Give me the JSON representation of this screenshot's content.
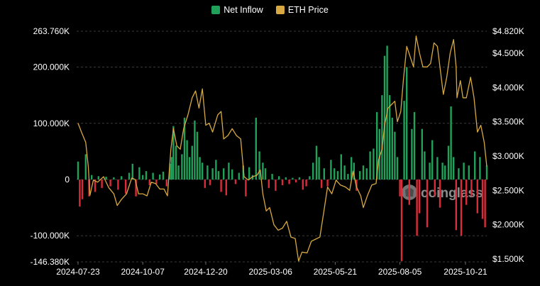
{
  "legend": {
    "inflow_label": "Net Inflow",
    "price_label": "ETH Price"
  },
  "watermark": {
    "text": "coinglass"
  },
  "colors": {
    "inflow_positive": "#21a05a",
    "inflow_negative": "#d92b3a",
    "price": "#d8a843",
    "grid": "#3a3a3a"
  },
  "chart_data": {
    "type": "bar+line",
    "categories_label": "date",
    "x_range": [
      "2024-07-23",
      "2025-11-15"
    ],
    "x_ticks": [
      "2024-07-23",
      "2024-10-07",
      "2024-12-20",
      "2025-03-06",
      "2025-05-21",
      "2025-08-05",
      "2025-10-21"
    ],
    "y_left": {
      "ticks": [
        "263.760K",
        "200.000K",
        "100.000K",
        "0",
        "-100.000K",
        "-146.380K"
      ],
      "tick_values": [
        263760,
        200000,
        100000,
        0,
        -100000,
        -146380
      ],
      "range": [
        -146380,
        263760
      ]
    },
    "y_right": {
      "ticks": [
        "$4.820K",
        "$4.500K",
        "$4.000K",
        "$3.500K",
        "$3.000K",
        "$2.500K",
        "$2.000K",
        "$1.500K"
      ],
      "tick_values": [
        4820,
        4500,
        4000,
        3500,
        3000,
        2500,
        2000,
        1500
      ],
      "range": [
        1420,
        4820
      ]
    },
    "grid": true,
    "legend_position": "top-center",
    "series": [
      {
        "name": "Net Inflow",
        "kind": "bar",
        "points": [
          [
            "2024-07-23",
            32000
          ],
          [
            "2024-07-25",
            -48000
          ],
          [
            "2024-07-28",
            -35000
          ],
          [
            "2024-08-01",
            45000
          ],
          [
            "2024-08-05",
            -30000
          ],
          [
            "2024-08-08",
            8000
          ],
          [
            "2024-08-12",
            -22000
          ],
          [
            "2024-08-16",
            6000
          ],
          [
            "2024-08-20",
            -15000
          ],
          [
            "2024-08-25",
            5000
          ],
          [
            "2024-08-30",
            -12000
          ],
          [
            "2024-09-03",
            4000
          ],
          [
            "2024-09-08",
            -18000
          ],
          [
            "2024-09-12",
            6000
          ],
          [
            "2024-09-17",
            -25000
          ],
          [
            "2024-09-21",
            12000
          ],
          [
            "2024-09-25",
            28000
          ],
          [
            "2024-09-29",
            -30000
          ],
          [
            "2024-10-03",
            22000
          ],
          [
            "2024-10-07",
            8000
          ],
          [
            "2024-10-11",
            15000
          ],
          [
            "2024-10-15",
            -10000
          ],
          [
            "2024-10-19",
            12000
          ],
          [
            "2024-10-23",
            -8000
          ],
          [
            "2024-10-27",
            9000
          ],
          [
            "2024-10-31",
            14000
          ],
          [
            "2024-11-04",
            -12000
          ],
          [
            "2024-11-08",
            28000
          ],
          [
            "2024-11-10",
            40000
          ],
          [
            "2024-11-12",
            95000
          ],
          [
            "2024-11-15",
            60000
          ],
          [
            "2024-11-18",
            25000
          ],
          [
            "2024-11-22",
            45000
          ],
          [
            "2024-11-25",
            110000
          ],
          [
            "2024-11-28",
            70000
          ],
          [
            "2024-12-01",
            40000
          ],
          [
            "2024-12-04",
            60000
          ],
          [
            "2024-12-07",
            105000
          ],
          [
            "2024-12-10",
            85000
          ],
          [
            "2024-12-13",
            40000
          ],
          [
            "2024-12-16",
            30000
          ],
          [
            "2024-12-19",
            -15000
          ],
          [
            "2024-12-22",
            25000
          ],
          [
            "2024-12-25",
            -10000
          ],
          [
            "2024-12-28",
            20000
          ],
          [
            "2025-01-01",
            35000
          ],
          [
            "2025-01-04",
            15000
          ],
          [
            "2025-01-07",
            -22000
          ],
          [
            "2025-01-10",
            20000
          ],
          [
            "2025-01-13",
            -28000
          ],
          [
            "2025-01-16",
            30000
          ],
          [
            "2025-01-20",
            18000
          ],
          [
            "2025-01-24",
            -8000
          ],
          [
            "2025-01-28",
            12000
          ],
          [
            "2025-02-02",
            25000
          ],
          [
            "2025-02-05",
            -30000
          ],
          [
            "2025-02-09",
            22000
          ],
          [
            "2025-02-13",
            8000
          ],
          [
            "2025-02-17",
            110000
          ],
          [
            "2025-02-21",
            50000
          ],
          [
            "2025-02-25",
            30000
          ],
          [
            "2025-02-28",
            20000
          ],
          [
            "2025-03-04",
            -15000
          ],
          [
            "2025-03-08",
            10000
          ],
          [
            "2025-03-12",
            -20000
          ],
          [
            "2025-03-16",
            6000
          ],
          [
            "2025-03-20",
            -10000
          ],
          [
            "2025-03-24",
            4000
          ],
          [
            "2025-03-28",
            -8000
          ],
          [
            "2025-04-01",
            3000
          ],
          [
            "2025-04-05",
            -5000
          ],
          [
            "2025-04-09",
            4000
          ],
          [
            "2025-04-13",
            -18000
          ],
          [
            "2025-04-17",
            -12000
          ],
          [
            "2025-04-21",
            6000
          ],
          [
            "2025-04-25",
            30000
          ],
          [
            "2025-04-29",
            60000
          ],
          [
            "2025-05-02",
            40000
          ],
          [
            "2025-05-05",
            -15000
          ],
          [
            "2025-05-08",
            20000
          ],
          [
            "2025-05-12",
            -12000
          ],
          [
            "2025-05-16",
            35000
          ],
          [
            "2025-05-20",
            20000
          ],
          [
            "2025-05-24",
            15000
          ],
          [
            "2025-05-28",
            45000
          ],
          [
            "2025-06-01",
            25000
          ],
          [
            "2025-06-05",
            10000
          ],
          [
            "2025-06-09",
            40000
          ],
          [
            "2025-06-12",
            30000
          ],
          [
            "2025-06-15",
            -20000
          ],
          [
            "2025-06-19",
            15000
          ],
          [
            "2025-06-23",
            25000
          ],
          [
            "2025-06-27",
            20000
          ],
          [
            "2025-07-01",
            50000
          ],
          [
            "2025-07-05",
            55000
          ],
          [
            "2025-07-09",
            120000
          ],
          [
            "2025-07-12",
            90000
          ],
          [
            "2025-07-15",
            150000
          ],
          [
            "2025-07-18",
            220000
          ],
          [
            "2025-07-21",
            238000
          ],
          [
            "2025-07-24",
            150000
          ],
          [
            "2025-07-27",
            110000
          ],
          [
            "2025-07-30",
            85000
          ],
          [
            "2025-08-02",
            40000
          ],
          [
            "2025-08-05",
            -30000
          ],
          [
            "2025-08-07",
            -145000
          ],
          [
            "2025-08-10",
            140000
          ],
          [
            "2025-08-13",
            200000
          ],
          [
            "2025-08-16",
            -45000
          ],
          [
            "2025-08-19",
            90000
          ],
          [
            "2025-08-22",
            120000
          ],
          [
            "2025-08-25",
            -100000
          ],
          [
            "2025-08-28",
            -60000
          ],
          [
            "2025-08-31",
            90000
          ],
          [
            "2025-09-03",
            50000
          ],
          [
            "2025-09-06",
            -85000
          ],
          [
            "2025-09-09",
            30000
          ],
          [
            "2025-09-12",
            70000
          ],
          [
            "2025-09-15",
            -30000
          ],
          [
            "2025-09-18",
            40000
          ],
          [
            "2025-09-21",
            -50000
          ],
          [
            "2025-09-24",
            30000
          ],
          [
            "2025-09-27",
            25000
          ],
          [
            "2025-10-01",
            60000
          ],
          [
            "2025-10-04",
            130000
          ],
          [
            "2025-10-07",
            40000
          ],
          [
            "2025-10-10",
            -90000
          ],
          [
            "2025-10-13",
            20000
          ],
          [
            "2025-10-16",
            -100000
          ],
          [
            "2025-10-19",
            30000
          ],
          [
            "2025-10-22",
            -45000
          ],
          [
            "2025-10-25",
            25000
          ],
          [
            "2025-10-28",
            -30000
          ],
          [
            "2025-11-01",
            50000
          ],
          [
            "2025-11-04",
            -60000
          ],
          [
            "2025-11-07",
            40000
          ],
          [
            "2025-11-10",
            -70000
          ],
          [
            "2025-11-13",
            -85000
          ],
          [
            "2025-11-15",
            25000
          ]
        ]
      },
      {
        "name": "ETH Price",
        "kind": "line",
        "points": [
          [
            "2024-07-23",
            3480
          ],
          [
            "2024-07-27",
            3350
          ],
          [
            "2024-08-01",
            3200
          ],
          [
            "2024-08-04",
            2850
          ],
          [
            "2024-08-06",
            2430
          ],
          [
            "2024-08-10",
            2650
          ],
          [
            "2024-08-15",
            2620
          ],
          [
            "2024-08-22",
            2700
          ],
          [
            "2024-08-28",
            2540
          ],
          [
            "2024-09-03",
            2450
          ],
          [
            "2024-09-07",
            2280
          ],
          [
            "2024-09-12",
            2370
          ],
          [
            "2024-09-18",
            2450
          ],
          [
            "2024-09-24",
            2680
          ],
          [
            "2024-09-28",
            2660
          ],
          [
            "2024-10-02",
            2450
          ],
          [
            "2024-10-07",
            2450
          ],
          [
            "2024-10-12",
            2420
          ],
          [
            "2024-10-17",
            2620
          ],
          [
            "2024-10-22",
            2600
          ],
          [
            "2024-10-27",
            2520
          ],
          [
            "2024-11-01",
            2520
          ],
          [
            "2024-11-05",
            2420
          ],
          [
            "2024-11-09",
            3100
          ],
          [
            "2024-11-12",
            3400
          ],
          [
            "2024-11-16",
            3150
          ],
          [
            "2024-11-20",
            3100
          ],
          [
            "2024-11-24",
            3400
          ],
          [
            "2024-11-29",
            3600
          ],
          [
            "2024-12-04",
            3850
          ],
          [
            "2024-12-08",
            3950
          ],
          [
            "2024-12-12",
            3700
          ],
          [
            "2024-12-16",
            3980
          ],
          [
            "2024-12-20",
            3450
          ],
          [
            "2024-12-24",
            3480
          ],
          [
            "2024-12-28",
            3350
          ],
          [
            "2025-01-03",
            3600
          ],
          [
            "2025-01-07",
            3650
          ],
          [
            "2025-01-10",
            3250
          ],
          [
            "2025-01-15",
            3300
          ],
          [
            "2025-01-20",
            3400
          ],
          [
            "2025-01-25",
            3300
          ],
          [
            "2025-01-30",
            3250
          ],
          [
            "2025-02-03",
            2700
          ],
          [
            "2025-02-08",
            2650
          ],
          [
            "2025-02-13",
            2700
          ],
          [
            "2025-02-18",
            2720
          ],
          [
            "2025-02-22",
            2800
          ],
          [
            "2025-02-25",
            2450
          ],
          [
            "2025-03-01",
            2200
          ],
          [
            "2025-03-05",
            2250
          ],
          [
            "2025-03-10",
            2000
          ],
          [
            "2025-03-15",
            1920
          ],
          [
            "2025-03-20",
            1950
          ],
          [
            "2025-03-25",
            2050
          ],
          [
            "2025-03-30",
            1820
          ],
          [
            "2025-04-04",
            1800
          ],
          [
            "2025-04-08",
            1470
          ],
          [
            "2025-04-12",
            1600
          ],
          [
            "2025-04-18",
            1590
          ],
          [
            "2025-04-23",
            1760
          ],
          [
            "2025-04-28",
            1790
          ],
          [
            "2025-05-03",
            1820
          ],
          [
            "2025-05-08",
            2220
          ],
          [
            "2025-05-12",
            2550
          ],
          [
            "2025-05-17",
            2450
          ],
          [
            "2025-05-22",
            2650
          ],
          [
            "2025-05-27",
            2580
          ],
          [
            "2025-06-02",
            2550
          ],
          [
            "2025-06-07",
            2500
          ],
          [
            "2025-06-11",
            2780
          ],
          [
            "2025-06-15",
            2550
          ],
          [
            "2025-06-20",
            2420
          ],
          [
            "2025-06-23",
            2250
          ],
          [
            "2025-06-28",
            2430
          ],
          [
            "2025-07-03",
            2580
          ],
          [
            "2025-07-08",
            2600
          ],
          [
            "2025-07-11",
            2950
          ],
          [
            "2025-07-15",
            3100
          ],
          [
            "2025-07-18",
            3450
          ],
          [
            "2025-07-22",
            3700
          ],
          [
            "2025-07-26",
            3750
          ],
          [
            "2025-07-30",
            3800
          ],
          [
            "2025-08-02",
            3500
          ],
          [
            "2025-08-06",
            3650
          ],
          [
            "2025-08-09",
            4100
          ],
          [
            "2025-08-13",
            4600
          ],
          [
            "2025-08-17",
            4450
          ],
          [
            "2025-08-21",
            4300
          ],
          [
            "2025-08-24",
            4750
          ],
          [
            "2025-08-28",
            4500
          ],
          [
            "2025-09-01",
            4300
          ],
          [
            "2025-09-06",
            4300
          ],
          [
            "2025-09-10",
            4350
          ],
          [
            "2025-09-14",
            4650
          ],
          [
            "2025-09-18",
            4600
          ],
          [
            "2025-09-22",
            4200
          ],
          [
            "2025-09-25",
            3900
          ],
          [
            "2025-09-29",
            4150
          ],
          [
            "2025-10-03",
            4500
          ],
          [
            "2025-10-07",
            4700
          ],
          [
            "2025-10-10",
            4300
          ],
          [
            "2025-10-11",
            3850
          ],
          [
            "2025-10-15",
            4100
          ],
          [
            "2025-10-18",
            3850
          ],
          [
            "2025-10-22",
            3850
          ],
          [
            "2025-10-27",
            4150
          ],
          [
            "2025-10-31",
            3850
          ],
          [
            "2025-11-04",
            3350
          ],
          [
            "2025-11-08",
            3450
          ],
          [
            "2025-11-12",
            3200
          ],
          [
            "2025-11-15",
            2850
          ]
        ]
      }
    ]
  }
}
